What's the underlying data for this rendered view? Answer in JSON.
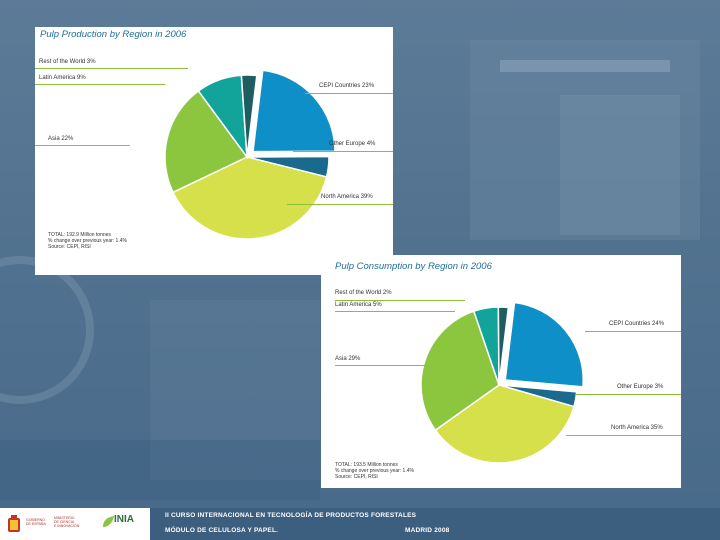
{
  "chart_data": [
    {
      "type": "pie",
      "title": "Pulp Production by Region in 2006",
      "categories": [
        "CEPI Countries",
        "Other Europe",
        "North America",
        "Asia",
        "Latin America",
        "Rest of the World"
      ],
      "values": [
        23,
        4,
        39,
        22,
        9,
        3
      ],
      "labels": [
        "CEPI Countries 23%",
        "Other Europe 4%",
        "North America 39%",
        "Asia 22%",
        "Latin America 9%",
        "Rest of the World 3%"
      ],
      "exploded": "CEPI Countries",
      "notes": [
        "TOTAL: 192.9 Million tonnes",
        "% change over previous year: 1.4%",
        "Source: CEPI, RISI"
      ]
    },
    {
      "type": "pie",
      "title": "Pulp Consumption by Region in 2006",
      "categories": [
        "CEPI Countries",
        "Other Europe",
        "North America",
        "Asia",
        "Latin America",
        "Rest of the World"
      ],
      "values": [
        24,
        3,
        35,
        29,
        5,
        2
      ],
      "labels": [
        "CEPI Countries 24%",
        "Other Europe 3%",
        "North America 35%",
        "Asia 29%",
        "Latin America 5%",
        "Rest of the World 2%"
      ],
      "exploded": "CEPI Countries",
      "notes": [
        "TOTAL: 193.5 Million tonnes",
        "% change over previous year: 1.4%",
        "Source: CEPI, RISI"
      ]
    }
  ],
  "colors": {
    "CEPI Countries": "#0f8fc7",
    "Other Europe": "#1a6a8e",
    "North America": "#d6e04a",
    "Asia": "#8cc63f",
    "Latin America": "#12a39a",
    "Rest of the World": "#1e5e63"
  },
  "footer": {
    "line1": "II CURSO INTERNACIONAL EN TECNOLOGÍA DE PRODUCTOS FORESTALES",
    "line2_left": "MÓDULO DE CELULOSA Y PAPEL.",
    "line2_right": "MADRID 2008",
    "gov_text": [
      "GOBIERNO",
      "DE ESPAÑA"
    ],
    "ministry_text": [
      "MINISTERIO",
      "DE CIENCIA",
      "E INNOVACIÓN"
    ],
    "inia_logo": "INIA"
  }
}
